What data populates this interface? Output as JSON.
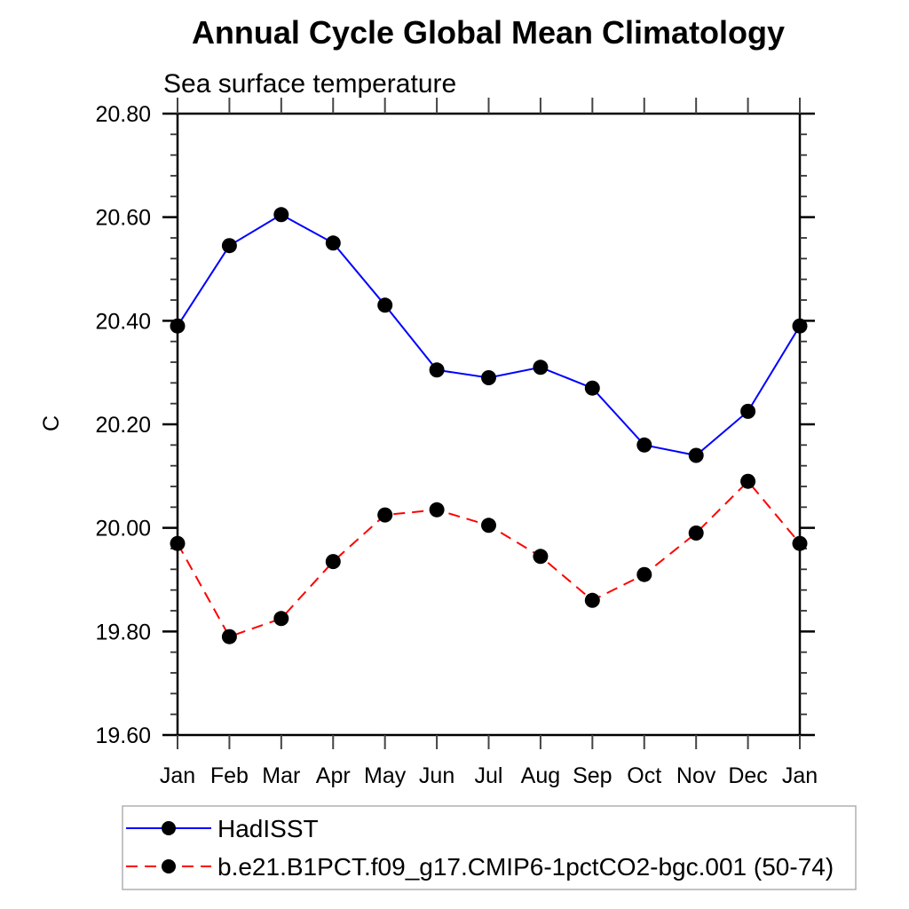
{
  "page": {
    "background_color": "#ffffff"
  },
  "chart_data": {
    "type": "line",
    "title": "Annual Cycle Global Mean Climatology",
    "subtitle": "Sea surface temperature",
    "xlabel": "",
    "ylabel": "C",
    "categories": [
      "Jan",
      "Feb",
      "Mar",
      "Apr",
      "May",
      "Jun",
      "Jul",
      "Aug",
      "Sep",
      "Oct",
      "Nov",
      "Dec",
      "Jan"
    ],
    "ylim": [
      19.6,
      20.8
    ],
    "y_major_step": 0.2,
    "y_minor_step": 0.04,
    "y_tick_labels": [
      "19.60",
      "19.80",
      "20.00",
      "20.20",
      "20.40",
      "20.60",
      "20.80"
    ],
    "grid": false,
    "axis_color": "#000000",
    "marker_color": "#000000",
    "marker_shape": "filled-circle",
    "series": [
      {
        "name": "HadISST",
        "color": "#0000ff",
        "line_style": "solid",
        "values": [
          20.39,
          20.545,
          20.605,
          20.55,
          20.43,
          20.305,
          20.29,
          20.31,
          20.27,
          20.16,
          20.14,
          20.225,
          20.39
        ]
      },
      {
        "name": "b.e21.B1PCT.f09_g17.CMIP6-1pctCO2-bgc.001 (50-74)",
        "color": "#ff0000",
        "line_style": "dashed",
        "values": [
          19.97,
          19.79,
          19.825,
          19.935,
          20.025,
          20.035,
          20.005,
          19.945,
          19.86,
          19.91,
          19.99,
          20.09,
          19.97
        ]
      }
    ],
    "legend": {
      "position": "bottom-left",
      "border_color": "#b0b0b0",
      "entries": [
        "HadISST",
        "b.e21.B1PCT.f09_g17.CMIP6-1pctCO2-bgc.001 (50-74)"
      ]
    }
  }
}
